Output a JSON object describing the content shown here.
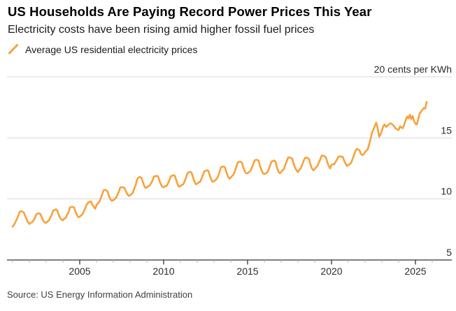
{
  "header": {
    "title": "US Households Are Paying Record Power Prices This Year",
    "subtitle": "Electricity costs have been rising amid higher fossil fuel prices"
  },
  "legend": {
    "series_label": "Average US residential electricity prices",
    "swatch_icon": "orange-slash-icon"
  },
  "source": "Source: US Energy Information Administration",
  "colors": {
    "line": "#F9A13B",
    "gridline": "#D9D9D9",
    "axis": "#333333",
    "major_tick": "#333333",
    "minor_tick": "#B3B3B3",
    "tick_label": "#2B2B2B",
    "title_text": "#000000",
    "body_text": "#1A1A1A"
  },
  "chart_data": {
    "type": "line",
    "title": "US Households Are Paying Record Power Prices This Year",
    "subtitle": "Electricity costs have been rising amid higher fossil fuel prices",
    "unit": "cents per kWh",
    "frequency": "monthly",
    "x_start": "2001-01",
    "x_end": "2025-09",
    "x_range": [
      2001,
      2026.2
    ],
    "ylim": [
      5,
      20
    ],
    "grid": "horizontal",
    "legend_position": "top-left",
    "x_ticks_major": [
      "2005",
      "2010",
      "2015",
      "2020",
      "2025"
    ],
    "x_ticks_minor_years": [
      2001,
      2002,
      2003,
      2004,
      2006,
      2007,
      2008,
      2009,
      2011,
      2012,
      2013,
      2014,
      2016,
      2017,
      2018,
      2019,
      2021,
      2022,
      2023,
      2024,
      2026
    ],
    "y_ticks": [
      {
        "value": 20,
        "label": "20 cents per KWh"
      },
      {
        "value": 15,
        "label": "15"
      },
      {
        "value": 10,
        "label": "10"
      },
      {
        "value": 5,
        "label": "5"
      }
    ],
    "series": [
      {
        "name": "Average US residential electricity prices",
        "color": "#F9A13B",
        "values": [
          7.73,
          7.88,
          8.09,
          8.35,
          8.6,
          8.92,
          9.0,
          8.95,
          8.9,
          8.6,
          8.35,
          8.1,
          7.95,
          8.05,
          8.1,
          8.25,
          8.45,
          8.75,
          8.8,
          8.82,
          8.75,
          8.45,
          8.2,
          8.05,
          8.05,
          8.15,
          8.25,
          8.5,
          8.7,
          9.05,
          9.1,
          9.15,
          9.05,
          8.7,
          8.45,
          8.3,
          8.25,
          8.4,
          8.45,
          8.7,
          8.92,
          9.3,
          9.35,
          9.35,
          9.3,
          8.95,
          8.7,
          8.5,
          8.55,
          8.65,
          8.75,
          9.0,
          9.25,
          9.55,
          9.7,
          9.75,
          9.8,
          9.55,
          9.35,
          9.2,
          9.5,
          9.65,
          9.75,
          10.05,
          10.35,
          10.7,
          10.75,
          10.7,
          10.6,
          10.2,
          9.95,
          9.85,
          9.9,
          10.0,
          10.1,
          10.35,
          10.6,
          10.95,
          10.95,
          10.95,
          10.9,
          10.65,
          10.4,
          10.25,
          10.3,
          10.4,
          10.5,
          10.85,
          11.15,
          11.6,
          11.75,
          11.8,
          11.75,
          11.45,
          11.1,
          10.9,
          10.95,
          11.05,
          11.1,
          11.3,
          11.5,
          11.85,
          11.85,
          11.9,
          11.85,
          11.5,
          11.2,
          11.0,
          10.95,
          11.05,
          11.05,
          11.25,
          11.5,
          11.85,
          11.9,
          11.95,
          11.9,
          11.55,
          11.2,
          11.0,
          11.05,
          11.15,
          11.2,
          11.45,
          11.75,
          12.1,
          12.2,
          12.2,
          12.15,
          11.75,
          11.45,
          11.2,
          11.25,
          11.35,
          11.4,
          11.65,
          11.95,
          12.25,
          12.3,
          12.35,
          12.3,
          11.9,
          11.6,
          11.4,
          11.45,
          11.55,
          11.65,
          11.9,
          12.2,
          12.6,
          12.65,
          12.65,
          12.55,
          12.15,
          11.85,
          11.65,
          11.75,
          11.9,
          12.0,
          12.3,
          12.65,
          13.0,
          13.05,
          13.05,
          12.95,
          12.55,
          12.25,
          12.1,
          12.1,
          12.2,
          12.3,
          12.55,
          12.85,
          13.15,
          13.2,
          13.2,
          13.1,
          12.65,
          12.35,
          12.1,
          12.05,
          12.1,
          12.15,
          12.4,
          12.7,
          13.05,
          13.1,
          13.15,
          13.05,
          12.6,
          12.25,
          12.1,
          12.2,
          12.35,
          12.45,
          12.8,
          13.1,
          13.4,
          13.4,
          13.35,
          13.3,
          12.85,
          12.55,
          12.35,
          12.2,
          12.4,
          12.5,
          12.8,
          13.1,
          13.35,
          13.4,
          13.35,
          13.25,
          12.8,
          12.5,
          12.35,
          12.45,
          12.6,
          12.7,
          13.0,
          13.25,
          13.55,
          13.55,
          13.5,
          13.4,
          13.0,
          12.7,
          12.5,
          12.8,
          12.85,
          12.85,
          13.05,
          13.25,
          13.45,
          13.5,
          13.45,
          13.45,
          13.15,
          12.9,
          12.7,
          12.8,
          12.85,
          12.95,
          13.25,
          13.55,
          13.9,
          14.1,
          14.05,
          14.0,
          13.7,
          13.6,
          13.65,
          13.85,
          13.95,
          14.1,
          14.5,
          14.95,
          15.45,
          15.7,
          16.0,
          16.25,
          15.8,
          15.1,
          15.25,
          15.6,
          15.95,
          16.1,
          15.9,
          16.0,
          16.1,
          16.2,
          16.15,
          16.05,
          15.9,
          15.75,
          15.7,
          15.65,
          15.95,
          15.85,
          15.8,
          16.1,
          16.45,
          16.75,
          16.6,
          16.9,
          16.55,
          16.8,
          16.4,
          16.15,
          16.1,
          16.55,
          17.0,
          17.15,
          17.3,
          17.45,
          17.4,
          17.95
        ]
      }
    ]
  }
}
